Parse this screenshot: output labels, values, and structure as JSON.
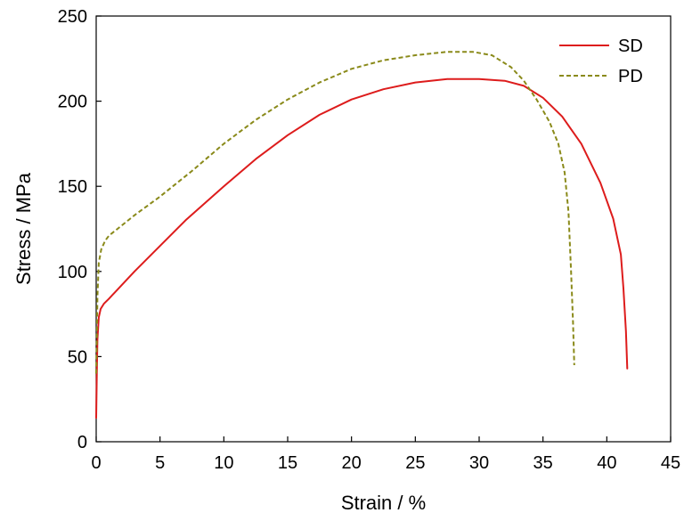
{
  "chart_data": {
    "type": "line",
    "xlabel": "Strain / %",
    "ylabel": "Stress / MPa",
    "xlim": [
      0,
      45
    ],
    "ylim": [
      0,
      250
    ],
    "xticks": [
      0,
      5,
      10,
      15,
      20,
      25,
      30,
      35,
      40,
      45
    ],
    "yticks": [
      0,
      50,
      100,
      150,
      200,
      250
    ],
    "grid": false,
    "legend_position": "top-right",
    "series": [
      {
        "name": "SD",
        "color": "#dd1c1c",
        "style": "solid",
        "points": [
          [
            0,
            14
          ],
          [
            0.05,
            40
          ],
          [
            0.1,
            60
          ],
          [
            0.2,
            73
          ],
          [
            0.35,
            78
          ],
          [
            0.6,
            81
          ],
          [
            1,
            84
          ],
          [
            2,
            92
          ],
          [
            3,
            100
          ],
          [
            5,
            115
          ],
          [
            7,
            130
          ],
          [
            10,
            150
          ],
          [
            12.5,
            166
          ],
          [
            15,
            180
          ],
          [
            17.5,
            192
          ],
          [
            20,
            201
          ],
          [
            22.5,
            207
          ],
          [
            25,
            211
          ],
          [
            27.5,
            213
          ],
          [
            30,
            213
          ],
          [
            32,
            212
          ],
          [
            33.5,
            209
          ],
          [
            35,
            202
          ],
          [
            36.5,
            191
          ],
          [
            38,
            175
          ],
          [
            39.5,
            152
          ],
          [
            40.5,
            131
          ],
          [
            41.1,
            110
          ],
          [
            41.3,
            90
          ],
          [
            41.5,
            65
          ],
          [
            41.6,
            43
          ]
        ]
      },
      {
        "name": "PD",
        "color": "#8a8a1a",
        "style": "dashed",
        "points": [
          [
            0,
            40
          ],
          [
            0.05,
            60
          ],
          [
            0.1,
            85
          ],
          [
            0.2,
            105
          ],
          [
            0.4,
            113
          ],
          [
            0.7,
            118
          ],
          [
            1,
            121
          ],
          [
            2,
            127
          ],
          [
            3,
            133
          ],
          [
            5,
            144
          ],
          [
            7.5,
            159
          ],
          [
            10,
            175
          ],
          [
            12.5,
            189
          ],
          [
            15,
            201
          ],
          [
            17.5,
            211
          ],
          [
            20,
            219
          ],
          [
            22.5,
            224
          ],
          [
            25,
            227
          ],
          [
            27.5,
            229
          ],
          [
            29.5,
            229
          ],
          [
            31,
            227
          ],
          [
            32.5,
            220
          ],
          [
            33.5,
            212
          ],
          [
            34.5,
            201
          ],
          [
            35.5,
            188
          ],
          [
            36.2,
            175
          ],
          [
            36.7,
            158
          ],
          [
            37,
            135
          ],
          [
            37.2,
            100
          ],
          [
            37.35,
            70
          ],
          [
            37.45,
            45
          ]
        ]
      }
    ]
  }
}
